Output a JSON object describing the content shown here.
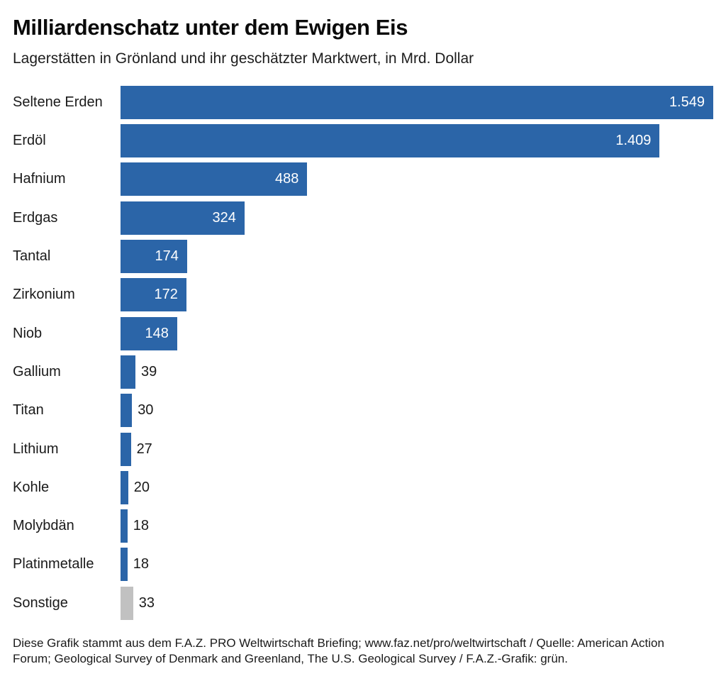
{
  "header": {
    "title": "Milliardenschatz unter dem Ewigen Eis",
    "subtitle": "Lagerstätten in Grönland und ihr geschätzter Marktwert, in Mrd. Dollar"
  },
  "chart_data": {
    "type": "bar",
    "orientation": "horizontal",
    "title": "Milliardenschatz unter dem Ewigen Eis",
    "subtitle": "Lagerstätten in Grönland und ihr geschätzter Marktwert, in Mrd. Dollar",
    "unit": "Mrd. Dollar",
    "categories": [
      "Seltene Erden",
      "Erdöl",
      "Hafnium",
      "Erdgas",
      "Tantal",
      "Zirkonium",
      "Niob",
      "Gallium",
      "Titan",
      "Lithium",
      "Kohle",
      "Molybdän",
      "Platinmetalle",
      "Sonstige"
    ],
    "values": [
      1549,
      1409,
      488,
      324,
      174,
      172,
      148,
      39,
      30,
      27,
      20,
      18,
      18,
      33
    ],
    "value_labels": [
      "1.549",
      "1.409",
      "488",
      "324",
      "174",
      "172",
      "148",
      "39",
      "30",
      "27",
      "20",
      "18",
      "18",
      "33"
    ],
    "bar_colors": [
      "#2b65a8",
      "#2b65a8",
      "#2b65a8",
      "#2b65a8",
      "#2b65a8",
      "#2b65a8",
      "#2b65a8",
      "#2b65a8",
      "#2b65a8",
      "#2b65a8",
      "#2b65a8",
      "#2b65a8",
      "#2b65a8",
      "#c1c1c1"
    ],
    "xlim": [
      0,
      1549
    ],
    "grid": false,
    "legend": false
  },
  "footer": {
    "line1": "Diese Grafik stammt aus dem F.A.Z. PRO Weltwirtschaft Briefing; www.faz.net/pro/weltwirtschaft / Quelle: American Action",
    "line2": "Forum; Geological Survey of Denmark and Greenland, The U.S. Geological Survey / F.A.Z.-Grafik: grün."
  },
  "colors": {
    "bar": "#2b65a8",
    "muted_bar": "#c1c1c1",
    "value_inside": "#ffffff",
    "text": "#1a1a1a",
    "background": "#ffffff"
  }
}
